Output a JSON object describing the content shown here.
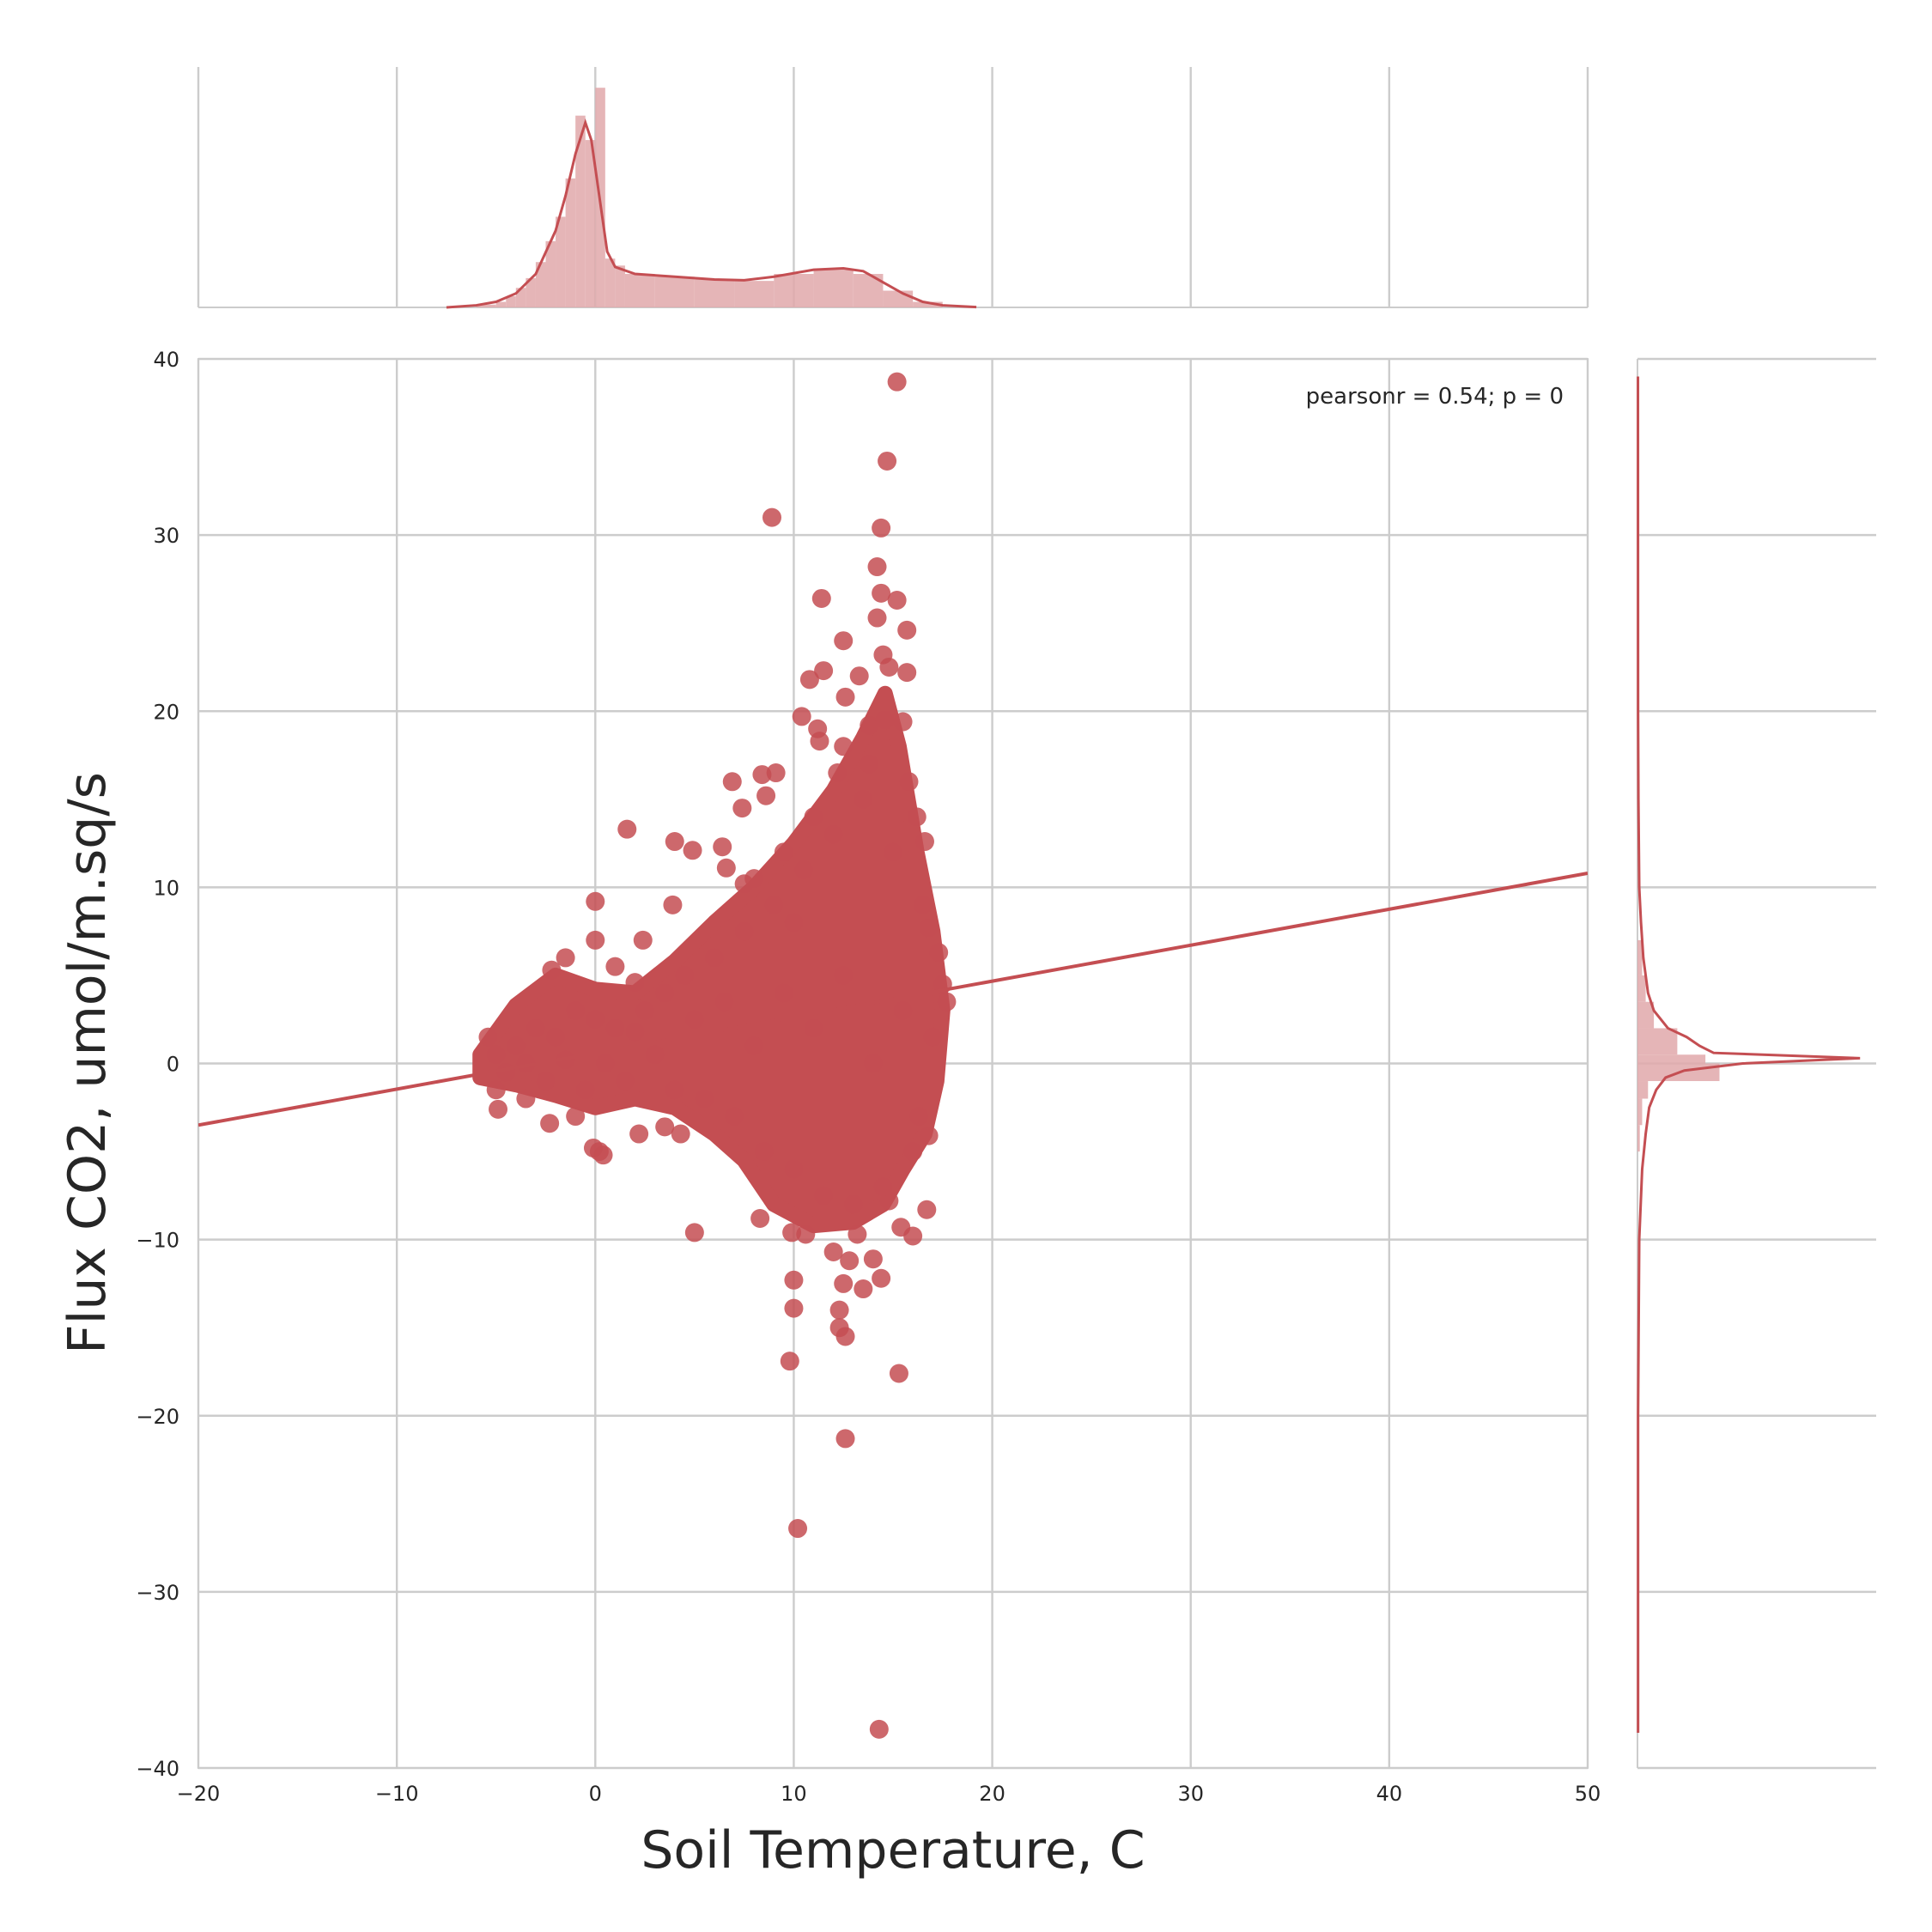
{
  "chart_data": {
    "type": "scatter",
    "kind": "joint plot with marginal histograms and KDE",
    "xlabel": "Soil Temperature, C",
    "ylabel": "Flux CO2, umol/m.sq/s",
    "xlim": [
      -20,
      50
    ],
    "ylim": [
      -40,
      40
    ],
    "xticks": [
      -20,
      -10,
      0,
      10,
      20,
      30,
      40,
      50
    ],
    "yticks": [
      -40,
      -30,
      -20,
      -10,
      0,
      10,
      20,
      30,
      40
    ],
    "grid": true,
    "annotation": "pearsonr = 0.54; p = 0",
    "colors": {
      "points": "#c44e52",
      "hist": "#e0a8aa",
      "grid": "#cccccc",
      "text": "#262626"
    },
    "regression": {
      "x": [
        -20,
        50
      ],
      "y": [
        -3.5,
        10.8
      ]
    },
    "points": [
      [
        15.2,
        38.7
      ],
      [
        14.7,
        34.2
      ],
      [
        14.4,
        30.4
      ],
      [
        8.9,
        31.0
      ],
      [
        14.2,
        28.2
      ],
      [
        14.4,
        26.7
      ],
      [
        11.4,
        26.4
      ],
      [
        15.2,
        26.3
      ],
      [
        14.2,
        25.3
      ],
      [
        15.7,
        24.6
      ],
      [
        12.5,
        24.0
      ],
      [
        14.5,
        23.2
      ],
      [
        14.8,
        22.5
      ],
      [
        15.7,
        22.2
      ],
      [
        10.8,
        21.8
      ],
      [
        11.5,
        22.3
      ],
      [
        13.3,
        22.0
      ],
      [
        12.6,
        20.8
      ],
      [
        10.4,
        19.7
      ],
      [
        13.8,
        19.2
      ],
      [
        11.2,
        19.0
      ],
      [
        15.5,
        19.4
      ],
      [
        11.3,
        18.3
      ],
      [
        12.5,
        18.0
      ],
      [
        9.1,
        16.5
      ],
      [
        6.9,
        16.0
      ],
      [
        8.4,
        16.4
      ],
      [
        8.6,
        15.2
      ],
      [
        7.4,
        14.5
      ],
      [
        1.6,
        13.3
      ],
      [
        16.6,
        12.6
      ],
      [
        4.0,
        12.6
      ],
      [
        4.9,
        12.1
      ],
      [
        6.4,
        12.3
      ],
      [
        6.6,
        11.1
      ],
      [
        7.5,
        10.2
      ],
      [
        0.0,
        9.2
      ],
      [
        3.9,
        9.0
      ],
      [
        2.4,
        7.0
      ],
      [
        0.0,
        7.0
      ],
      [
        -1.5,
        6.0
      ],
      [
        -2.2,
        5.3
      ],
      [
        17.3,
        6.3
      ],
      [
        16.8,
        7.7
      ],
      [
        17.5,
        4.5
      ],
      [
        17.7,
        3.5
      ],
      [
        1.0,
        5.5
      ],
      [
        2.0,
        4.6
      ],
      [
        -5.4,
        1.5
      ],
      [
        -5.0,
        -1.5
      ],
      [
        -4.9,
        -2.6
      ],
      [
        -3.5,
        -2.0
      ],
      [
        -2.3,
        -3.4
      ],
      [
        -1.0,
        -3.0
      ],
      [
        -0.1,
        -4.8
      ],
      [
        0.2,
        -5.0
      ],
      [
        0.4,
        -5.2
      ],
      [
        2.2,
        -4.0
      ],
      [
        3.5,
        -3.6
      ],
      [
        4.3,
        -4.0
      ],
      [
        16.8,
        -4.1
      ],
      [
        16.3,
        -3.0
      ],
      [
        5.0,
        -9.6
      ],
      [
        8.3,
        -8.8
      ],
      [
        9.9,
        -9.6
      ],
      [
        10.6,
        -9.7
      ],
      [
        13.2,
        -9.7
      ],
      [
        15.4,
        -9.3
      ],
      [
        16.7,
        -8.3
      ],
      [
        16.0,
        -9.8
      ],
      [
        14.8,
        -7.8
      ],
      [
        12.0,
        -10.7
      ],
      [
        14.0,
        -11.1
      ],
      [
        12.8,
        -11.2
      ],
      [
        14.4,
        -12.2
      ],
      [
        10.0,
        -12.3
      ],
      [
        12.5,
        -12.5
      ],
      [
        13.5,
        -12.8
      ],
      [
        10.0,
        -13.9
      ],
      [
        12.3,
        -14.0
      ],
      [
        12.3,
        -15.0
      ],
      [
        12.6,
        -15.5
      ],
      [
        9.8,
        -16.9
      ],
      [
        15.3,
        -17.6
      ],
      [
        12.6,
        -21.3
      ],
      [
        10.2,
        -26.4
      ],
      [
        14.3,
        -37.8
      ],
      [
        -5.0,
        0.5
      ],
      [
        -4.5,
        -0.5
      ],
      [
        -4.0,
        1.0
      ],
      [
        -3.5,
        0.0
      ],
      [
        -3.0,
        2.0
      ],
      [
        -2.5,
        -1.0
      ],
      [
        -2.0,
        1.5
      ],
      [
        -1.5,
        0.2
      ],
      [
        -1.0,
        3.0
      ],
      [
        -0.5,
        -1.5
      ],
      [
        0.0,
        2.5
      ],
      [
        0.5,
        0.0
      ],
      [
        1.0,
        2.0
      ],
      [
        1.5,
        -1.0
      ],
      [
        2.0,
        1.8
      ],
      [
        2.5,
        3.0
      ],
      [
        3.0,
        0.5
      ],
      [
        3.5,
        4.0
      ],
      [
        4.0,
        -1.5
      ],
      [
        4.5,
        5.0
      ],
      [
        5.0,
        2.5
      ],
      [
        5.5,
        -2.0
      ],
      [
        6.0,
        6.0
      ],
      [
        6.5,
        3.5
      ],
      [
        7.0,
        -3.0
      ],
      [
        7.5,
        7.5
      ],
      [
        8.0,
        1.0
      ],
      [
        8.5,
        -5.0
      ],
      [
        9.0,
        9.0
      ],
      [
        9.5,
        4.0
      ],
      [
        10.0,
        -6.0
      ],
      [
        10.5,
        11.0
      ],
      [
        11.0,
        2.0
      ],
      [
        11.5,
        -7.5
      ],
      [
        12.0,
        13.0
      ],
      [
        12.5,
        5.0
      ],
      [
        13.0,
        -8.0
      ],
      [
        13.5,
        15.0
      ],
      [
        14.0,
        0.0
      ],
      [
        14.5,
        -7.0
      ],
      [
        15.0,
        12.0
      ],
      [
        15.5,
        3.0
      ],
      [
        16.0,
        -5.0
      ],
      [
        16.5,
        9.0
      ],
      [
        17.0,
        1.5
      ],
      [
        13.8,
        17.0
      ],
      [
        14.6,
        19.5
      ],
      [
        12.2,
        16.5
      ],
      [
        11.0,
        14.0
      ],
      [
        9.5,
        12.0
      ],
      [
        8.0,
        10.5
      ],
      [
        10.0,
        8.0
      ],
      [
        15.8,
        16.0
      ],
      [
        16.2,
        14.0
      ]
    ],
    "cloud": [
      [
        -5.8,
        0.5
      ],
      [
        -4.0,
        3.3
      ],
      [
        -2.0,
        5.0
      ],
      [
        0.0,
        4.2
      ],
      [
        2.0,
        4.0
      ],
      [
        4.0,
        5.8
      ],
      [
        6.0,
        8.0
      ],
      [
        8.0,
        10.0
      ],
      [
        10.0,
        12.5
      ],
      [
        12.0,
        15.5
      ],
      [
        13.5,
        18.5
      ],
      [
        14.6,
        21.0
      ],
      [
        15.3,
        18.0
      ],
      [
        16.2,
        12.0
      ],
      [
        17.0,
        7.5
      ],
      [
        17.5,
        3.0
      ],
      [
        17.2,
        -1.0
      ],
      [
        16.6,
        -4.0
      ],
      [
        15.5,
        -6.0
      ],
      [
        14.5,
        -8.0
      ],
      [
        13.0,
        -9.0
      ],
      [
        11.0,
        -9.2
      ],
      [
        9.0,
        -8.0
      ],
      [
        7.5,
        -5.5
      ],
      [
        6.0,
        -4.0
      ],
      [
        4.0,
        -2.5
      ],
      [
        2.0,
        -2.0
      ],
      [
        0.0,
        -2.5
      ],
      [
        -2.0,
        -1.8
      ],
      [
        -4.0,
        -1.2
      ],
      [
        -5.8,
        -0.8
      ]
    ],
    "marginal_x": {
      "bins": [
        [
          -6,
          -5,
          0.4
        ],
        [
          -5,
          -4.5,
          0.8
        ],
        [
          -4.5,
          -4,
          1.6
        ],
        [
          -4,
          -3.5,
          2.8
        ],
        [
          -3.5,
          -3,
          4.2
        ],
        [
          -3,
          -2.5,
          6.5
        ],
        [
          -2.5,
          -2,
          9.5
        ],
        [
          -2,
          -1.5,
          13
        ],
        [
          -1.5,
          -1,
          18.5
        ],
        [
          -1,
          -0.5,
          27.5
        ],
        [
          -0.5,
          0,
          24
        ],
        [
          0,
          0.5,
          31.5
        ],
        [
          0.5,
          1,
          7
        ],
        [
          1,
          1.5,
          6.0
        ],
        [
          1.5,
          3,
          4.8
        ],
        [
          3,
          5,
          4.4
        ],
        [
          5,
          7,
          4.0
        ],
        [
          7,
          9,
          3.8
        ],
        [
          9,
          11,
          4.8
        ],
        [
          11,
          13,
          5.4
        ],
        [
          13,
          14.5,
          4.8
        ],
        [
          14.5,
          16,
          2.4
        ],
        [
          16,
          17.5,
          0.8
        ]
      ],
      "kde": [
        [
          -7.5,
          0.0
        ],
        [
          -6,
          0.3
        ],
        [
          -5,
          0.8
        ],
        [
          -4,
          2.0
        ],
        [
          -3,
          4.8
        ],
        [
          -2,
          11
        ],
        [
          -1.5,
          16
        ],
        [
          -1,
          22
        ],
        [
          -0.5,
          26.5
        ],
        [
          -0.2,
          24
        ],
        [
          0.2,
          16
        ],
        [
          0.6,
          8
        ],
        [
          1.0,
          5.8
        ],
        [
          2,
          4.8
        ],
        [
          4,
          4.4
        ],
        [
          6,
          4.0
        ],
        [
          7.5,
          3.9
        ],
        [
          9,
          4.4
        ],
        [
          11,
          5.4
        ],
        [
          12.5,
          5.6
        ],
        [
          13.5,
          5.2
        ],
        [
          14.5,
          3.6
        ],
        [
          15.5,
          2.0
        ],
        [
          16.5,
          0.8
        ],
        [
          17.5,
          0.3
        ],
        [
          19.2,
          0.05
        ]
      ],
      "max": 33
    },
    "marginal_y": {
      "bins": [
        [
          -1,
          0,
          7.0
        ],
        [
          0,
          0.5,
          5.8
        ],
        [
          0.5,
          2,
          3.4
        ],
        [
          2,
          3.5,
          1.4
        ],
        [
          3.5,
          5,
          0.7
        ],
        [
          5,
          7,
          0.4
        ],
        [
          -2,
          -1,
          0.9
        ],
        [
          -3.5,
          -2,
          0.4
        ],
        [
          -5,
          -3.5,
          0.2
        ]
      ],
      "kde": [
        [
          -38,
          0.05
        ],
        [
          -20,
          0.05
        ],
        [
          -10,
          0.15
        ],
        [
          -6,
          0.4
        ],
        [
          -4,
          0.7
        ],
        [
          -2.5,
          1.0
        ],
        [
          -1.5,
          1.6
        ],
        [
          -0.8,
          2.4
        ],
        [
          -0.4,
          4.0
        ],
        [
          0.0,
          9.0
        ],
        [
          0.3,
          19.0
        ],
        [
          0.6,
          6.5
        ],
        [
          1.0,
          5.3
        ],
        [
          1.5,
          4.2
        ],
        [
          2.0,
          2.6
        ],
        [
          3.0,
          1.4
        ],
        [
          4.0,
          0.9
        ],
        [
          5.0,
          0.7
        ],
        [
          6.0,
          0.5
        ],
        [
          8.0,
          0.3
        ],
        [
          10.0,
          0.15
        ],
        [
          15.0,
          0.08
        ],
        [
          20.0,
          0.05
        ],
        [
          39.0,
          0.04
        ]
      ],
      "max": 19.5
    }
  }
}
